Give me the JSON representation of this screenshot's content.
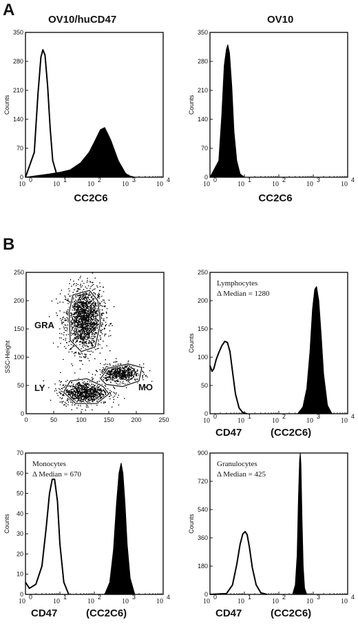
{
  "panel_labels": {
    "a": "A",
    "b": "B"
  },
  "chart_data": [
    {
      "id": "a1",
      "type": "area",
      "title": "OV10/huCD47",
      "xlabel": "CC2C6",
      "ylabel": "Counts",
      "xscale": "log",
      "xlim": [
        1,
        10000
      ],
      "ylim": [
        0,
        350
      ],
      "x_ticks": [
        "1",
        "10",
        "100",
        "1000",
        "10000"
      ],
      "x_tick_labels": [
        {
          "base": "10",
          "exp": "0"
        },
        {
          "base": "10",
          "exp": "1"
        },
        {
          "base": "10",
          "exp": "2"
        },
        {
          "base": "10",
          "exp": "3"
        },
        {
          "base": "10",
          "exp": "4"
        }
      ],
      "y_ticks": [
        "0",
        "70",
        "140",
        "210",
        "280",
        "350"
      ],
      "series": [
        {
          "style": "open",
          "x": [
            1,
            1.8,
            2.3,
            2.8,
            3.2,
            3.7,
            4.4,
            5.2,
            6.2,
            8,
            12
          ],
          "y": [
            0,
            60,
            200,
            290,
            308,
            295,
            220,
            120,
            40,
            8,
            0
          ]
        },
        {
          "style": "filled",
          "x": [
            1,
            5,
            10,
            20,
            40,
            70,
            100,
            150,
            200,
            300,
            500,
            800,
            1000,
            1500
          ],
          "y": [
            0,
            8,
            12,
            18,
            35,
            60,
            85,
            115,
            120,
            90,
            40,
            10,
            4,
            0
          ]
        }
      ]
    },
    {
      "id": "a2",
      "type": "area",
      "title": "OV10",
      "xlabel": "CC2C6",
      "ylabel": "Counts",
      "xscale": "log",
      "xlim": [
        1,
        10000
      ],
      "ylim": [
        0,
        350
      ],
      "x_ticks": [
        "1",
        "10",
        "100",
        "1000",
        "10000"
      ],
      "x_tick_labels": [
        {
          "base": "10",
          "exp": "0"
        },
        {
          "base": "10",
          "exp": "1"
        },
        {
          "base": "10",
          "exp": "2"
        },
        {
          "base": "10",
          "exp": "3"
        },
        {
          "base": "10",
          "exp": "4"
        }
      ],
      "y_ticks": [
        "0",
        "70",
        "140",
        "210",
        "280",
        "350"
      ],
      "series": [
        {
          "style": "filled",
          "x": [
            1,
            1.8,
            2.2,
            2.6,
            3,
            3.3,
            3.7,
            4.3,
            5,
            6,
            7.5,
            10
          ],
          "y": [
            0,
            40,
            150,
            270,
            310,
            320,
            300,
            220,
            110,
            40,
            8,
            0
          ]
        }
      ]
    },
    {
      "id": "b1",
      "type": "scatter",
      "xlabel": "",
      "ylabel": "SSC-Height",
      "xlim": [
        0,
        250
      ],
      "ylim": [
        0,
        250
      ],
      "x_ticks": [
        "0",
        "50",
        "100",
        "150",
        "200",
        "250"
      ],
      "y_ticks": [
        "0",
        "50",
        "100",
        "150",
        "200",
        "250"
      ],
      "clusters": [
        {
          "name": "GRA",
          "center": [
            105,
            168
          ],
          "spread": [
            17,
            28
          ],
          "count": 1700
        },
        {
          "name": "LY",
          "center": [
            105,
            38
          ],
          "spread": [
            22,
            10
          ],
          "count": 900
        },
        {
          "name": "MO",
          "center": [
            170,
            72
          ],
          "spread": [
            18,
            8
          ],
          "count": 650
        }
      ],
      "gates": [
        {
          "name": "GRA",
          "points": [
            [
              85,
              210
            ],
            [
              115,
              218
            ],
            [
              130,
              200
            ],
            [
              135,
              160
            ],
            [
              125,
              118
            ],
            [
              100,
              110
            ],
            [
              80,
              130
            ],
            [
              78,
              180
            ]
          ]
        },
        {
          "name": "LY",
          "points": [
            [
              68,
              38
            ],
            [
              80,
              58
            ],
            [
              110,
              62
            ],
            [
              140,
              48
            ],
            [
              150,
              35
            ],
            [
              128,
              18
            ],
            [
              90,
              18
            ]
          ]
        },
        {
          "name": "MO",
          "points": [
            [
              135,
              62
            ],
            [
              148,
              80
            ],
            [
              185,
              88
            ],
            [
              210,
              82
            ],
            [
              205,
              58
            ],
            [
              175,
              48
            ],
            [
              145,
              52
            ]
          ]
        }
      ],
      "gate_labels": [
        "GRA",
        "LY",
        "MO"
      ]
    },
    {
      "id": "b2",
      "type": "area",
      "xlabel": "CD47",
      "xlabel2": "(CC2C6)",
      "ylabel": "Counts",
      "xscale": "log",
      "xlim": [
        1,
        10000
      ],
      "ylim": [
        0,
        250
      ],
      "x_ticks": [
        "1",
        "10",
        "100",
        "1000",
        "10000"
      ],
      "x_tick_labels": [
        {
          "base": "10",
          "exp": "0"
        },
        {
          "base": "10",
          "exp": "1"
        },
        {
          "base": "10",
          "exp": "2"
        },
        {
          "base": "10",
          "exp": "3"
        },
        {
          "base": "10",
          "exp": "4"
        }
      ],
      "y_ticks": [
        "0",
        "50",
        "100",
        "150",
        "200",
        "250"
      ],
      "annotation": [
        "Lymphocytes",
        "Δ Median = 1280"
      ],
      "series": [
        {
          "style": "open",
          "x": [
            1,
            1.15,
            1.3,
            1.5,
            1.8,
            2.2,
            2.7,
            3.2,
            3.8,
            4.5,
            5.5,
            7,
            9,
            12
          ],
          "y": [
            85,
            75,
            80,
            95,
            108,
            120,
            128,
            126,
            110,
            75,
            35,
            10,
            2,
            0
          ]
        },
        {
          "style": "filled",
          "x": [
            350,
            500,
            650,
            800,
            950,
            1100,
            1250,
            1450,
            1700,
            2000,
            2600,
            3500
          ],
          "y": [
            0,
            12,
            45,
            110,
            185,
            220,
            225,
            200,
            140,
            70,
            15,
            0
          ]
        }
      ]
    },
    {
      "id": "b3",
      "type": "area",
      "xlabel": "CD47",
      "xlabel2": "(CC2C6)",
      "ylabel": "Counts",
      "xscale": "log",
      "xlim": [
        1,
        10000
      ],
      "ylim": [
        0,
        70
      ],
      "x_ticks": [
        "1",
        "10",
        "100",
        "1000",
        "10000"
      ],
      "x_tick_labels": [
        {
          "base": "10",
          "exp": "0"
        },
        {
          "base": "10",
          "exp": "1"
        },
        {
          "base": "10",
          "exp": "2"
        },
        {
          "base": "10",
          "exp": "3"
        },
        {
          "base": "10",
          "exp": "4"
        }
      ],
      "y_ticks": [
        "0",
        "10",
        "20",
        "30",
        "40",
        "50",
        "60",
        "70"
      ],
      "annotation": [
        "Monocytes",
        "Δ Median = 670"
      ],
      "series": [
        {
          "style": "open",
          "x": [
            1,
            1.3,
            2,
            3,
            4,
            5,
            6,
            7,
            8.5,
            10,
            13,
            18
          ],
          "y": [
            6,
            3,
            5,
            14,
            33,
            50,
            57,
            57,
            46,
            25,
            6,
            0
          ]
        },
        {
          "style": "filled",
          "x": [
            200,
            280,
            360,
            440,
            520,
            600,
            680,
            780,
            900,
            1100,
            1500
          ],
          "y": [
            0,
            6,
            22,
            45,
            60,
            65,
            60,
            45,
            25,
            8,
            0
          ]
        }
      ]
    },
    {
      "id": "b4",
      "type": "area",
      "xlabel": "CD47",
      "xlabel2": "(CC2C6)",
      "ylabel": "Counts",
      "xscale": "log",
      "xlim": [
        1,
        10000
      ],
      "ylim": [
        0,
        900
      ],
      "x_ticks": [
        "1",
        "10",
        "100",
        "1000",
        "10000"
      ],
      "x_tick_labels": [
        {
          "base": "10",
          "exp": "0"
        },
        {
          "base": "10",
          "exp": "1"
        },
        {
          "base": "10",
          "exp": "2"
        },
        {
          "base": "10",
          "exp": "3"
        },
        {
          "base": "10",
          "exp": "4"
        }
      ],
      "y_ticks": [
        "0",
        "180",
        "360",
        "540",
        "720",
        "900"
      ],
      "annotation": [
        "Granulocytes",
        "Δ Median = 425"
      ],
      "series": [
        {
          "style": "open",
          "x": [
            1,
            3,
            4.5,
            6,
            7.5,
            9,
            10.5,
            12,
            14,
            17,
            22,
            30,
            45
          ],
          "y": [
            0,
            5,
            60,
            190,
            320,
            385,
            400,
            380,
            300,
            170,
            60,
            10,
            0
          ]
        },
        {
          "style": "filled",
          "x": [
            250,
            300,
            340,
            370,
            400,
            420,
            440,
            470,
            510,
            560,
            650
          ],
          "y": [
            0,
            60,
            250,
            600,
            850,
            900,
            820,
            500,
            180,
            40,
            0
          ]
        }
      ]
    }
  ]
}
